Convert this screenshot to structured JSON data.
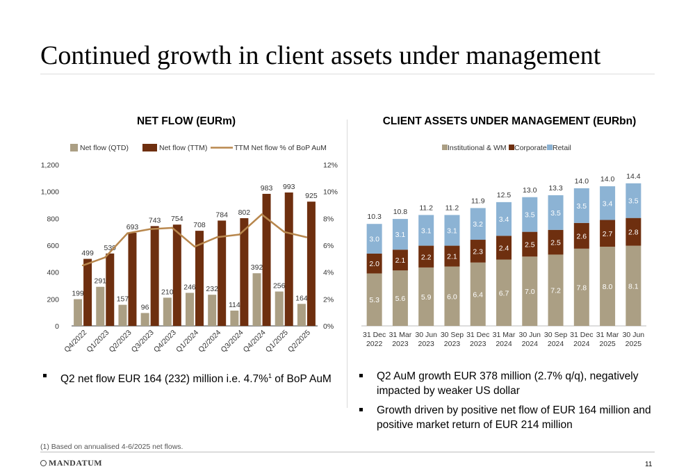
{
  "page": {
    "title": "Continued growth in client assets under management",
    "footnote": "(1) Based on annualised 4-6/2025 net flows.",
    "brand": "MANDATUM",
    "page_number": "11",
    "left_bullet": {
      "pre": "Q2 net flow EUR 164 (232) million i.e. 4.7%",
      "sup": "1",
      "post": " of BoP AuM"
    },
    "right_bullets": [
      [
        "Q2 AuM growth EUR 378 million (2.7% q/q), negatively",
        "impacted by weaker US dollar"
      ],
      [
        "Growth driven by positive net flow of EUR 164 million and",
        "positive market return of EUR 214 million"
      ]
    ]
  },
  "colors": {
    "tan": "#ab9f84",
    "brown": "#6e2f0f",
    "gold": "#b8874d",
    "blue": "#8cb3d4",
    "axis": "#333333"
  },
  "chart_data": [
    {
      "type": "bar",
      "title": "NET FLOW (EURm)",
      "categories": [
        "Q4/2022",
        "Q1/2023",
        "Q2/2023",
        "Q3/2023",
        "Q4/2023",
        "Q1/2024",
        "Q2/2024",
        "Q3/2024",
        "Q4/2024",
        "Q1/2025",
        "Q2/2025"
      ],
      "series": [
        {
          "name": "Net flow (QTD)",
          "kind": "bar",
          "axis": "left",
          "color": "#ab9f84",
          "values": [
            199,
            291,
            157,
            96,
            210,
            246,
            232,
            114,
            392,
            256,
            164
          ]
        },
        {
          "name": "Net flow (TTM)",
          "kind": "bar",
          "axis": "left",
          "color": "#6e2f0f",
          "values": [
            499,
            539,
            693,
            743,
            754,
            708,
            784,
            802,
            983,
            993,
            925
          ]
        },
        {
          "name": "TTM Net flow % of BoP AuM",
          "kind": "line",
          "axis": "right",
          "color": "#b8874d",
          "values": [
            4.5,
            5.1,
            6.9,
            7.2,
            7.3,
            5.9,
            6.6,
            6.8,
            8.3,
            7.0,
            6.6
          ]
        }
      ],
      "ylim": [
        0,
        1200
      ],
      "yticks": [
        "0",
        "200",
        "400",
        "600",
        "800",
        "1,000",
        "1,200"
      ],
      "y2lim": [
        0,
        12
      ],
      "y2ticks": [
        "0%",
        "2%",
        "4%",
        "6%",
        "8%",
        "10%",
        "12%"
      ],
      "legend": "top"
    },
    {
      "type": "bar",
      "stacked": true,
      "title": "CLIENT ASSETS UNDER MANAGEMENT (EURbn)",
      "categories": [
        [
          "31 Dec",
          "2022"
        ],
        [
          "31 Mar",
          "2023"
        ],
        [
          "30 Jun",
          "2023"
        ],
        [
          "30 Sep",
          "2023"
        ],
        [
          "31 Dec",
          "2023"
        ],
        [
          "31 Mar",
          "2024"
        ],
        [
          "30 Jun",
          "2024"
        ],
        [
          "30 Sep",
          "2024"
        ],
        [
          "31 Dec",
          "2024"
        ],
        [
          "31 Mar",
          "2025"
        ],
        [
          "30 Jun",
          "2025"
        ]
      ],
      "series": [
        {
          "name": "Institutional & WM",
          "color": "#ab9f84",
          "values": [
            5.3,
            5.6,
            5.9,
            6.0,
            6.4,
            6.7,
            7.0,
            7.2,
            7.8,
            8.0,
            8.1
          ]
        },
        {
          "name": "Corporate",
          "color": "#6e2f0f",
          "values": [
            2.0,
            2.1,
            2.2,
            2.1,
            2.3,
            2.4,
            2.5,
            2.5,
            2.6,
            2.7,
            2.8
          ]
        },
        {
          "name": "Retail",
          "color": "#8cb3d4",
          "values": [
            3.0,
            3.1,
            3.1,
            3.1,
            3.2,
            3.4,
            3.5,
            3.5,
            3.5,
            3.4,
            3.5
          ]
        }
      ],
      "totals": [
        "10.3",
        "10.8",
        "11.2",
        "11.2",
        "11.9",
        "12.5",
        "13.0",
        "13.3",
        "14.0",
        "14.0",
        "14.4"
      ],
      "legend": "top"
    }
  ]
}
